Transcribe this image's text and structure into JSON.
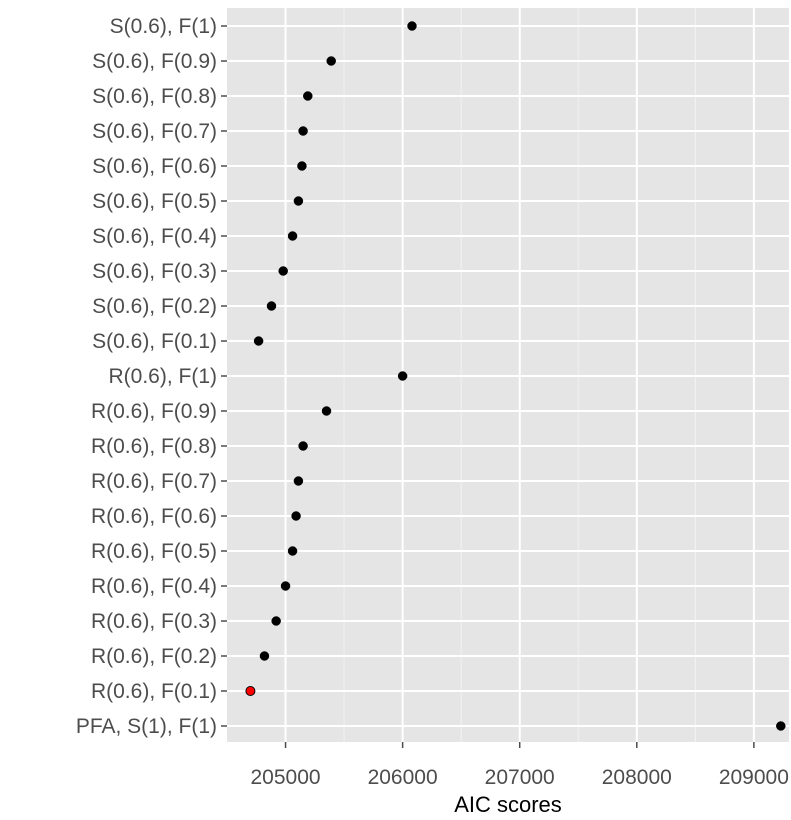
{
  "chart_data": {
    "type": "scatter",
    "title": "",
    "xlabel": "AIC scores",
    "ylabel": "",
    "xlim": [
      204500,
      209300
    ],
    "x_ticks": [
      205000,
      206000,
      207000,
      208000,
      209000
    ],
    "grid": true,
    "legend": "none",
    "categories": [
      "S(0.6), F(1)",
      "S(0.6), F(0.9)",
      "S(0.6), F(0.8)",
      "S(0.6), F(0.7)",
      "S(0.6), F(0.6)",
      "S(0.6), F(0.5)",
      "S(0.6), F(0.4)",
      "S(0.6), F(0.3)",
      "S(0.6), F(0.2)",
      "S(0.6), F(0.1)",
      "R(0.6), F(1)",
      "R(0.6), F(0.9)",
      "R(0.6), F(0.8)",
      "R(0.6), F(0.7)",
      "R(0.6), F(0.6)",
      "R(0.6), F(0.5)",
      "R(0.6), F(0.4)",
      "R(0.6), F(0.3)",
      "R(0.6), F(0.2)",
      "R(0.6), F(0.1)",
      "PFA, S(1), F(1)"
    ],
    "values": [
      206080,
      205390,
      205190,
      205150,
      205140,
      205110,
      205060,
      204980,
      204880,
      204770,
      206000,
      205350,
      205150,
      205110,
      205090,
      205060,
      205000,
      204920,
      204820,
      204700,
      209230
    ],
    "highlight_index": 19,
    "colors": {
      "point": "#000000",
      "highlight": "#ff0000",
      "panel": "#e5e5e5",
      "grid": "#ffffff"
    }
  }
}
